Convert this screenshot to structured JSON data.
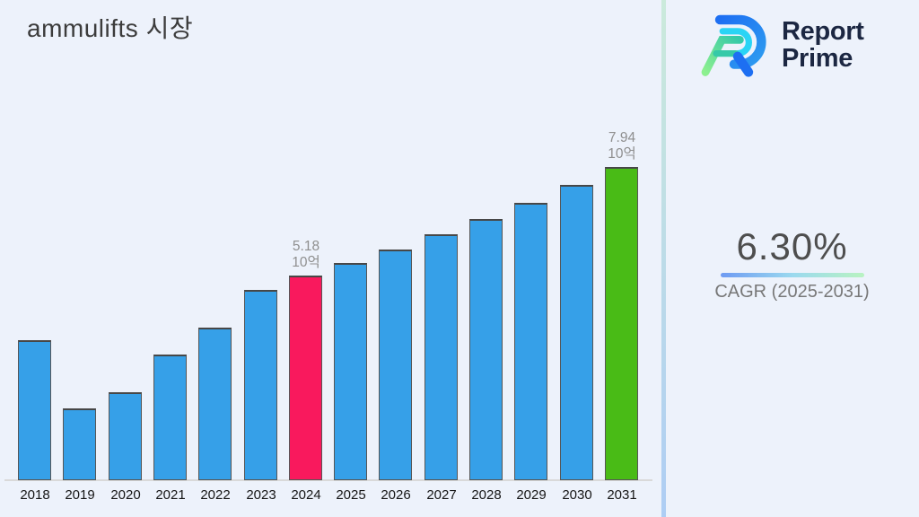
{
  "page": {
    "background": "#edf2fb"
  },
  "header": {
    "title": "ammulifts 시장"
  },
  "brand": {
    "line1": "Report",
    "line2": "Prime",
    "text_color": "#1c2742",
    "logo_colors": {
      "blue": "#1d6ff2",
      "light_blue": "#2e9cf0",
      "cyan": "#2ad4f5",
      "green": "#8df08f",
      "teal": "#35c9a8"
    }
  },
  "stat": {
    "value": "6.30%",
    "label": "CAGR (2025-2031)",
    "underline_gradient": [
      "#6d9af2",
      "#9bd9ef",
      "#b9f3c1"
    ]
  },
  "divider": {
    "top_color": "#cbeadb",
    "bottom_color": "#aecdf4"
  },
  "chart_data": {
    "type": "bar",
    "title": "ammulifts 시장",
    "categories": [
      "2018",
      "2019",
      "2020",
      "2021",
      "2022",
      "2023",
      "2024",
      "2025",
      "2026",
      "2027",
      "2028",
      "2029",
      "2030",
      "2031"
    ],
    "values": [
      3.55,
      1.82,
      2.23,
      3.18,
      3.86,
      4.82,
      5.18,
      5.5,
      5.85,
      6.22,
      6.61,
      7.03,
      7.47,
      7.94
    ],
    "unit": "10억",
    "xlabel": "",
    "ylabel": "",
    "ylim": [
      0,
      8.5
    ],
    "grid": false,
    "legend": false,
    "bar_color_default": "#36a0e8",
    "bar_color_highlights": {
      "2024": "#f9195d",
      "2031": "#49bb16"
    },
    "bar_border_color": "#565656",
    "data_labels": [
      {
        "category": "2024",
        "lines": [
          "5.18",
          "10억"
        ]
      },
      {
        "category": "2031",
        "lines": [
          "7.94",
          "10억"
        ]
      }
    ],
    "data_label_color": "#8f8f8f",
    "axis_line_color": "#d9d9d9",
    "tick_color": "#151515"
  }
}
